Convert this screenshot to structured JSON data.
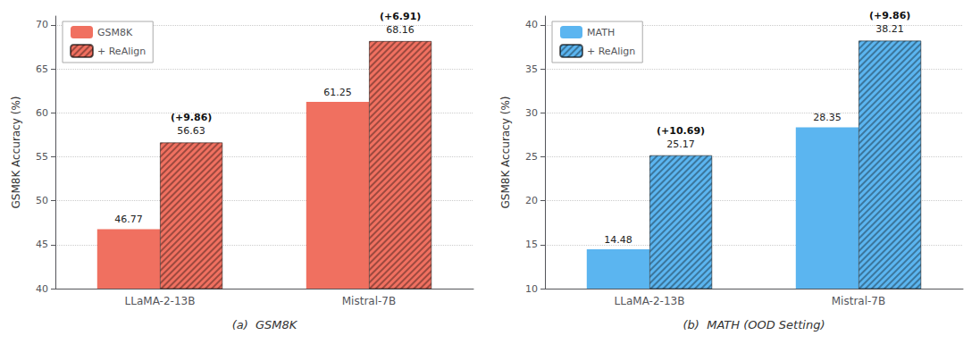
{
  "chart_data": [
    {
      "type": "bar",
      "categories": [
        "LLaMA-2-13B",
        "Mistral-7B"
      ],
      "series": [
        {
          "name": "GSM8K",
          "color": "#F07060",
          "values": [
            46.77,
            61.25
          ]
        },
        {
          "name": "+ ReAlign",
          "color": "#F07060",
          "values": [
            56.63,
            68.16
          ],
          "annotations": [
            "(+9.86)",
            "(+6.91)"
          ]
        }
      ],
      "ylabel": "GSM8K Accuracy (%)",
      "xlabel": "(a)  GSM8K",
      "ylim": [
        40,
        71
      ],
      "yticks": [
        40,
        45,
        50,
        55,
        60,
        65,
        70
      ],
      "grid": true,
      "legend": "upper left",
      "data_labels": true
    },
    {
      "type": "bar",
      "categories": [
        "LLaMA-2-13B",
        "Mistral-7B"
      ],
      "series": [
        {
          "name": "MATH",
          "color": "#5BB5F0",
          "values": [
            14.48,
            28.35
          ]
        },
        {
          "name": "+ ReAlign",
          "color": "#5BB5F0",
          "values": [
            25.17,
            38.21
          ],
          "annotations": [
            "(+10.69)",
            "(+9.86)"
          ]
        }
      ],
      "ylabel": "GSM8K Accuracy (%)",
      "xlabel": "(b)  MATH (OOD Setting)",
      "ylim": [
        10,
        41
      ],
      "yticks": [
        10,
        15,
        20,
        25,
        30,
        35,
        40
      ],
      "grid": true,
      "legend": "upper left",
      "data_labels": true
    }
  ]
}
